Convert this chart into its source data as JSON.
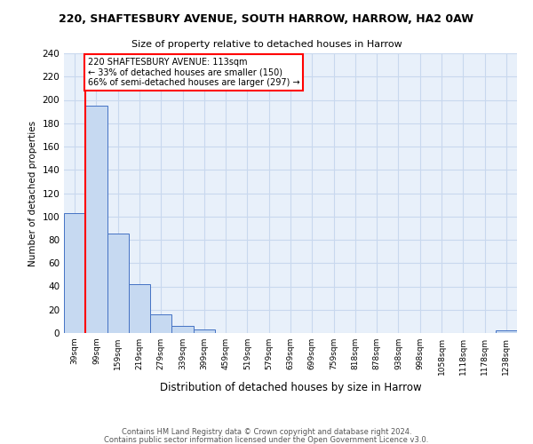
{
  "title": "220, SHAFTESBURY AVENUE, SOUTH HARROW, HARROW, HA2 0AW",
  "subtitle": "Size of property relative to detached houses in Harrow",
  "xlabel": "Distribution of detached houses by size in Harrow",
  "ylabel": "Number of detached properties",
  "footer1": "Contains HM Land Registry data © Crown copyright and database right 2024.",
  "footer2": "Contains public sector information licensed under the Open Government Licence v3.0.",
  "bin_labels": [
    "39sqm",
    "99sqm",
    "159sqm",
    "219sqm",
    "279sqm",
    "339sqm",
    "399sqm",
    "459sqm",
    "519sqm",
    "579sqm",
    "639sqm",
    "699sqm",
    "759sqm",
    "818sqm",
    "878sqm",
    "938sqm",
    "998sqm",
    "1058sqm",
    "1118sqm",
    "1178sqm",
    "1238sqm"
  ],
  "bar_values": [
    103,
    195,
    85,
    42,
    16,
    6,
    3,
    0,
    0,
    0,
    0,
    0,
    0,
    0,
    0,
    0,
    0,
    0,
    0,
    0,
    2
  ],
  "bar_color": "#c6d9f1",
  "bar_edge_color": "#4472c4",
  "annotation_text": "220 SHAFTESBURY AVENUE: 113sqm\n← 33% of detached houses are smaller (150)\n66% of semi-detached houses are larger (297) →",
  "annotation_box_color": "#ffffff",
  "annotation_box_edge_color": "#ff0000",
  "ylim": [
    0,
    240
  ],
  "yticks": [
    0,
    20,
    40,
    60,
    80,
    100,
    120,
    140,
    160,
    180,
    200,
    220,
    240
  ],
  "grid_color": "#c8d8ee",
  "bg_color": "#e8f0fa"
}
